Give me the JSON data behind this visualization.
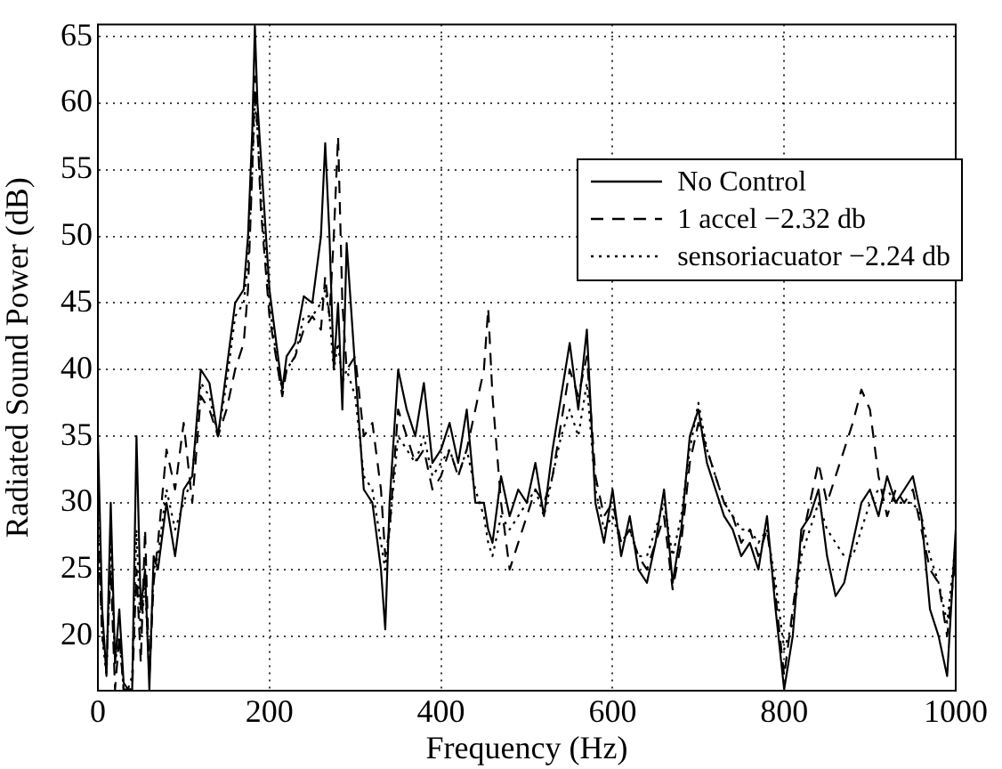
{
  "chart_data": {
    "type": "line",
    "xlabel": "Frequency (Hz)",
    "ylabel": "Radiated Sound Power (dB)",
    "xlim": [
      0,
      1000
    ],
    "xticks": [
      0,
      200,
      400,
      600,
      800,
      1000
    ],
    "ylim": [
      15.9,
      65.9
    ],
    "yticks": [
      20,
      25,
      30,
      35,
      40,
      45,
      50,
      55,
      60,
      65
    ],
    "grid": true,
    "legend": "top right",
    "marker": "none",
    "x": [
      0,
      5,
      10,
      15,
      20,
      25,
      30,
      35,
      40,
      45,
      50,
      55,
      60,
      65,
      70,
      80,
      90,
      100,
      110,
      120,
      130,
      140,
      150,
      160,
      170,
      175,
      180,
      183,
      186,
      190,
      200,
      210,
      215,
      220,
      230,
      240,
      250,
      260,
      265,
      270,
      275,
      280,
      285,
      290,
      300,
      310,
      320,
      330,
      335,
      340,
      350,
      360,
      370,
      380,
      390,
      400,
      410,
      420,
      430,
      440,
      450,
      455,
      460,
      470,
      480,
      490,
      500,
      510,
      520,
      530,
      540,
      550,
      560,
      570,
      580,
      590,
      600,
      610,
      620,
      630,
      640,
      650,
      660,
      670,
      680,
      690,
      700,
      710,
      720,
      730,
      740,
      750,
      760,
      770,
      780,
      790,
      800,
      810,
      820,
      830,
      840,
      850,
      860,
      870,
      880,
      890,
      900,
      910,
      920,
      930,
      940,
      950,
      960,
      970,
      980,
      990,
      1000
    ],
    "series": [
      {
        "name": "No Control",
        "color": "#000000",
        "line_style": "solid",
        "values": [
          35,
          22,
          17,
          30,
          18,
          22,
          16.5,
          16,
          16,
          35,
          22,
          25,
          16,
          26,
          25,
          30,
          26,
          31,
          32,
          40,
          39,
          35,
          40,
          45,
          46,
          50,
          58,
          65.8,
          60,
          56,
          46,
          41,
          38.5,
          41,
          42,
          45.5,
          45,
          50,
          57,
          50,
          40,
          45,
          37,
          49.5,
          40,
          31,
          30,
          25,
          20.5,
          30,
          40,
          37,
          35,
          39,
          33,
          34,
          36,
          33,
          37,
          30,
          30,
          28,
          27,
          32,
          29,
          31,
          30,
          33,
          29,
          34,
          38,
          42,
          37,
          43,
          30,
          27,
          31,
          26,
          29,
          25,
          24,
          27,
          31,
          24,
          28,
          35,
          37,
          33,
          31,
          29,
          28,
          26,
          27,
          25,
          29,
          22,
          16,
          20,
          28,
          29,
          31,
          26,
          23,
          24,
          27,
          30,
          31,
          29,
          32,
          30,
          31,
          32,
          29,
          22,
          20,
          17,
          28
        ]
      },
      {
        "name": "1 accel −2.32 db",
        "color": "#000000",
        "line_style": "dashed",
        "values": [
          28,
          20,
          18,
          25,
          16,
          20,
          16,
          16,
          16,
          25,
          18,
          28,
          17,
          24,
          27,
          34,
          31,
          36,
          30,
          38,
          37,
          35,
          37,
          40,
          42,
          46,
          55,
          62,
          58,
          52,
          44,
          40,
          38,
          40,
          41,
          43,
          44,
          43,
          47,
          44,
          50,
          57.5,
          45,
          40,
          41,
          35,
          36,
          31,
          26,
          28,
          37,
          35,
          33,
          34,
          31,
          32,
          34,
          32,
          34,
          37,
          40,
          44.6,
          38,
          30,
          25,
          27,
          29,
          31,
          30,
          32,
          36,
          40,
          38,
          41,
          32,
          29,
          30,
          27,
          28,
          26,
          25,
          27,
          29,
          23.5,
          27,
          33,
          36,
          34,
          32,
          30,
          29,
          27,
          28,
          26,
          28,
          23,
          17,
          22,
          27,
          30,
          33,
          30,
          32,
          34,
          36,
          38.5,
          37,
          32,
          29,
          31,
          30,
          31,
          28,
          25,
          24,
          20,
          26
        ]
      },
      {
        "name": "sensoriacuator −2.24 db",
        "color": "#000000",
        "line_style": "dotted",
        "values": [
          30,
          20,
          17,
          27,
          18,
          20,
          16,
          16,
          17,
          28,
          20,
          24,
          17,
          25,
          26,
          31,
          28,
          30,
          32,
          39,
          38,
          35,
          39,
          44,
          45,
          48,
          55,
          60,
          58,
          53,
          45,
          40,
          38.5,
          40,
          41,
          44,
          44,
          45,
          46,
          44,
          40,
          42,
          39,
          40,
          38,
          32,
          31,
          27,
          25,
          28,
          35,
          34,
          33,
          35,
          32,
          33,
          34,
          32,
          34,
          31,
          29,
          27,
          26,
          29,
          28,
          29,
          30,
          31,
          29,
          32,
          35,
          37,
          35,
          39,
          31,
          28,
          29,
          27,
          28,
          26,
          26,
          28,
          30,
          26,
          29,
          34,
          37.5,
          34,
          32,
          30,
          29,
          28,
          28,
          27,
          28,
          24,
          19,
          21,
          26,
          28,
          30,
          28,
          27,
          26,
          26,
          28,
          30,
          31,
          31,
          30,
          30,
          30,
          29,
          26,
          24,
          21,
          27
        ]
      }
    ]
  }
}
